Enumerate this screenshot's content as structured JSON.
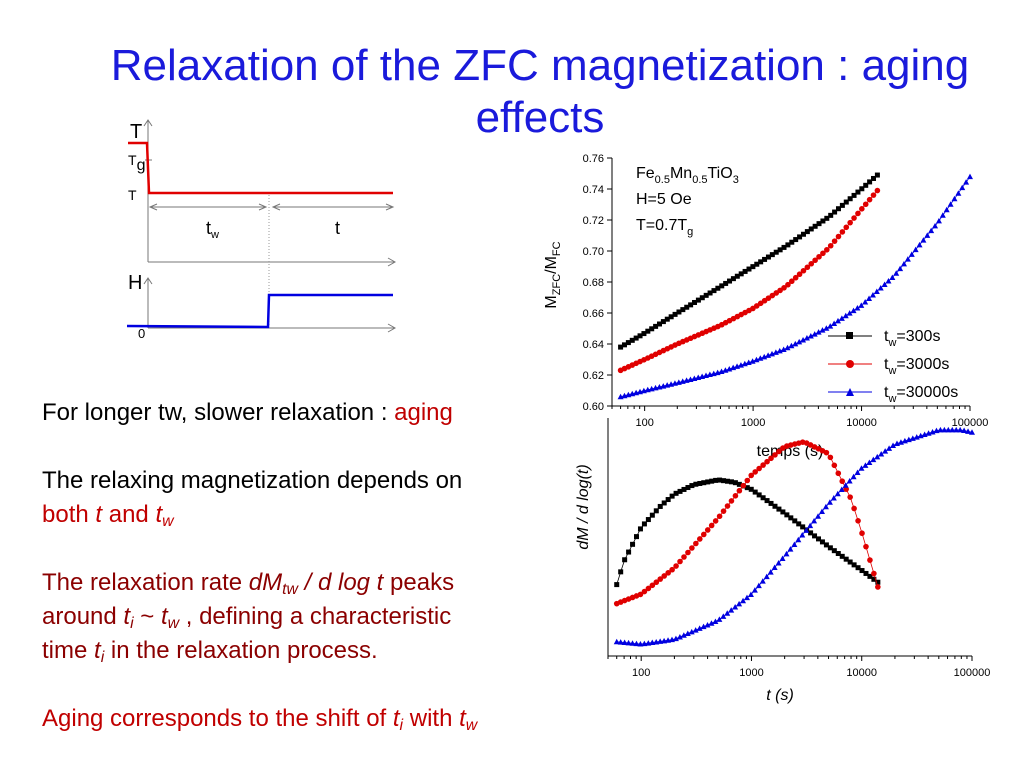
{
  "slide": {
    "title_line1": "Relaxation of the ZFC magnetization : aging",
    "title_line2": "effects"
  },
  "protocol": {
    "t_axis_label": "T",
    "tg_main": "T",
    "tg_sub": "g",
    "t_level_label": "T",
    "tw_main": "t",
    "tw_sub": "w",
    "t_interval_label": "t",
    "h_axis_label": "H",
    "h_zero_label": "0"
  },
  "text": {
    "line1_prefix": "For longer tw, slower relaxation : ",
    "line1_highlight": "aging",
    "line2": "The relaxing magnetization depends on",
    "line3_both": "both ",
    "line3_t": "t",
    "line3_and": " and ",
    "line3_tw_main": "t",
    "line3_tw_sub": "w",
    "line4_a": "The relaxation rate ",
    "line4_dm": "dM",
    "line4_dm_sub": "tw",
    "line4_b": " / d log t",
    "line4_c": " peaks",
    "line5_a": "around ",
    "line5_ti": "t",
    "line5_ti_sub": "i",
    "line5_b": " ~ ",
    "line5_tw": "t",
    "line5_tw_sub": "w",
    "line5_c": " , defining a characteristic",
    "line6_a": "time ",
    "line6_ti": "t",
    "line6_ti_sub": "i",
    "line6_b": " in the relaxation process.",
    "line7_a": "Aging corresponds to the shift of ",
    "line7_ti": "t",
    "line7_ti_sub": "i",
    "line7_b": " with ",
    "line7_tw": "t",
    "line7_tw_sub": "w"
  },
  "chart_data": [
    {
      "type": "scatter",
      "xscale": "log",
      "xlim": [
        50,
        100000
      ],
      "ylim": [
        0.6,
        0.76
      ],
      "x_ticks": [
        "100",
        "1000",
        "10000",
        "100000"
      ],
      "y_ticks": [
        "0.60",
        "0.62",
        "0.64",
        "0.66",
        "0.68",
        "0.70",
        "0.72",
        "0.74",
        "0.76"
      ],
      "xlabel": "temps (s)",
      "ylabel_main": "M",
      "ylabel_sub1": "ZFC",
      "ylabel_mid": "/M",
      "ylabel_sub2": "FC",
      "annotation": {
        "l1_a": "Fe",
        "l1_s1": "0.5",
        "l1_b": "Mn",
        "l1_s2": "0.5",
        "l1_c": "TiO",
        "l1_s3": "3",
        "l2": "H=5 Oe",
        "l3_a": "T=0.7T",
        "l3_s": "g"
      },
      "legend_position": "lower-right",
      "series": [
        {
          "name_main": "t",
          "name_sub": "w",
          "name_rest": "=300s",
          "color": "#000000",
          "marker": "square",
          "x": [
            60,
            100,
            200,
            500,
            1000,
            2000,
            5000,
            10000,
            14000
          ],
          "y": [
            0.638,
            0.647,
            0.66,
            0.677,
            0.69,
            0.703,
            0.722,
            0.74,
            0.749
          ]
        },
        {
          "name_main": "t",
          "name_sub": "w",
          "name_rest": "=3000s",
          "color": "#e00000",
          "marker": "circle",
          "x": [
            60,
            100,
            200,
            500,
            1000,
            2000,
            5000,
            10000,
            14000
          ],
          "y": [
            0.623,
            0.63,
            0.64,
            0.652,
            0.663,
            0.677,
            0.702,
            0.727,
            0.739
          ]
        },
        {
          "name_main": "t",
          "name_sub": "w",
          "name_rest": "=30000s",
          "color": "#0000e0",
          "marker": "triangle",
          "x": [
            60,
            100,
            200,
            500,
            1000,
            2000,
            5000,
            10000,
            20000,
            50000,
            100000
          ],
          "y": [
            0.606,
            0.61,
            0.615,
            0.622,
            0.629,
            0.637,
            0.651,
            0.665,
            0.684,
            0.718,
            0.748
          ]
        }
      ]
    },
    {
      "type": "scatter",
      "xscale": "log",
      "xlim": [
        50,
        100000
      ],
      "ylim": [
        0,
        1
      ],
      "x_ticks": [
        "100",
        "1000",
        "10000",
        "100000"
      ],
      "xlabel": "t  (s)",
      "ylabel": "dM / d log(t)",
      "series": [
        {
          "color": "#000000",
          "marker": "square",
          "x": [
            60,
            70,
            100,
            150,
            200,
            300,
            500,
            700,
            1000,
            2000,
            5000,
            10000,
            14000
          ],
          "y": [
            0.3,
            0.4,
            0.54,
            0.63,
            0.68,
            0.72,
            0.74,
            0.73,
            0.7,
            0.6,
            0.46,
            0.36,
            0.31
          ]
        },
        {
          "color": "#e00000",
          "marker": "circle",
          "x": [
            60,
            100,
            200,
            500,
            1000,
            2000,
            3000,
            5000,
            8000,
            10000,
            14000
          ],
          "y": [
            0.22,
            0.26,
            0.37,
            0.58,
            0.76,
            0.88,
            0.9,
            0.85,
            0.66,
            0.52,
            0.29
          ]
        },
        {
          "color": "#0000e0",
          "marker": "triangle",
          "x": [
            60,
            100,
            200,
            500,
            1000,
            2000,
            5000,
            10000,
            20000,
            50000,
            80000,
            100000
          ],
          "y": [
            0.06,
            0.05,
            0.07,
            0.15,
            0.26,
            0.42,
            0.64,
            0.79,
            0.89,
            0.95,
            0.95,
            0.94
          ]
        }
      ]
    }
  ]
}
